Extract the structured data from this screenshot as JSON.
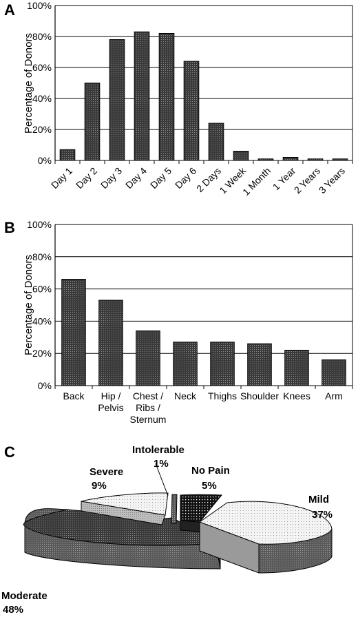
{
  "chart_data": [
    {
      "panel": "A",
      "type": "bar",
      "ylabel": "Percentage of Donors",
      "ylim": [
        0,
        100
      ],
      "yticks": [
        "0%",
        "20%",
        "40%",
        "60%",
        "80%",
        "100%"
      ],
      "grid": true,
      "categories": [
        "Day 1",
        "Day 2",
        "Day 3",
        "Day 4",
        "Day 5",
        "Day 6",
        "2 Days",
        "1 Week",
        "1 Month",
        "1 Year",
        "2 Years",
        "3 Years"
      ],
      "values": [
        7,
        50,
        78,
        83,
        82,
        64,
        24,
        6,
        1,
        2,
        1,
        1
      ]
    },
    {
      "panel": "B",
      "type": "bar",
      "ylabel": "Percentage of Donors",
      "ylim": [
        0,
        100
      ],
      "yticks": [
        "0%",
        "20%",
        "40%",
        "60%",
        "80%",
        "100%"
      ],
      "grid": true,
      "categories": [
        "Back",
        "Hip / Pelvis",
        "Chest / Ribs / Sternum",
        "Neck",
        "Thighs",
        "Shoulder",
        "Knees",
        "Arm"
      ],
      "values": [
        66,
        53,
        34,
        27,
        27,
        26,
        22,
        16
      ]
    },
    {
      "panel": "C",
      "type": "pie",
      "slices": [
        {
          "label": "No Pain",
          "pct_label": "5%",
          "value": 5
        },
        {
          "label": "Mild",
          "pct_label": "37%",
          "value": 37
        },
        {
          "label": "Moderate",
          "pct_label": "48%",
          "value": 48
        },
        {
          "label": "Severe",
          "pct_label": "9%",
          "value": 9
        },
        {
          "label": "Intolerable",
          "pct_label": "1%",
          "value": 1
        }
      ]
    }
  ]
}
